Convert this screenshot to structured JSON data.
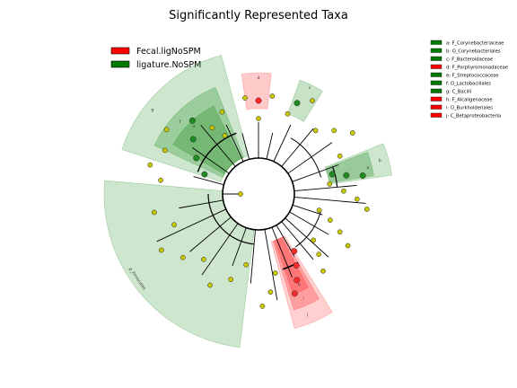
{
  "title": "Significantly Represented Taxa",
  "groups": [
    {
      "name": "Fecal.ligNoSPM",
      "color": "#ff0000"
    },
    {
      "name": "ligature.NoSPM",
      "color": "#007a00"
    }
  ],
  "taxa": [
    {
      "label": "a: F_Corynebacteriaceae",
      "group": "ligature.NoSPM"
    },
    {
      "label": "b: O_Corynebacteriales",
      "group": "ligature.NoSPM"
    },
    {
      "label": "c: F_Bacteroidaceae",
      "group": "ligature.NoSPM"
    },
    {
      "label": "d: F_Porphyromonadaceae",
      "group": "Fecal.ligNoSPM"
    },
    {
      "label": "e: F_Streptococcaceae",
      "group": "ligature.NoSPM"
    },
    {
      "label": "f: O_Lactobacillales",
      "group": "ligature.NoSPM"
    },
    {
      "label": "g: C_Bacilli",
      "group": "ligature.NoSPM"
    },
    {
      "label": "h: F_Alcaligenaceae",
      "group": "Fecal.ligNoSPM"
    },
    {
      "label": "i: O_Burkholderiales",
      "group": "Fecal.ligNoSPM"
    },
    {
      "label": "j: C_Betaproteobacteria",
      "group": "Fecal.ligNoSPM"
    }
  ],
  "clade_labels": {
    "a": "a",
    "b": "b",
    "c": "c",
    "d": "d",
    "e": "e",
    "f": "f",
    "g": "g",
    "h": "h",
    "i": "i",
    "j": "j",
    "phylum": "p_Firmicutes"
  },
  "colors": {
    "ligature_fill": "#1e8c1e",
    "fecal_fill": "#ff2a2a",
    "neutral_node": "#c8c800",
    "line": "#000000"
  }
}
